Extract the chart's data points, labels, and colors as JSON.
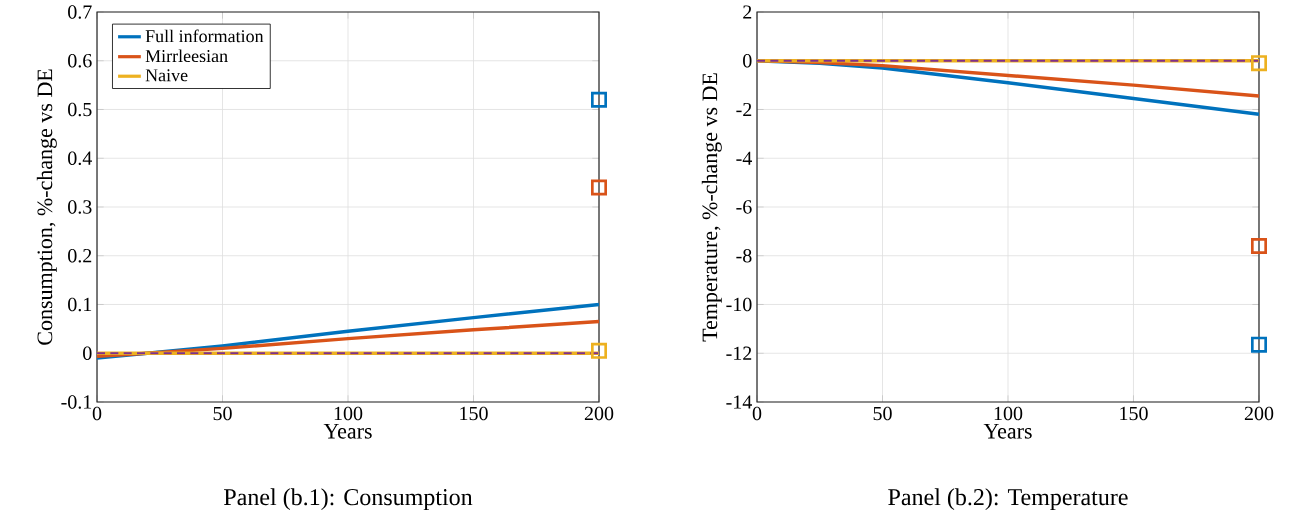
{
  "chart_data": [
    {
      "type": "line",
      "title": "Panel (b.1): Consumption",
      "xlabel": "Years",
      "ylabel": "Consumption, %-change vs DE",
      "xlim": [
        0,
        200
      ],
      "xticks": [
        0,
        50,
        100,
        150,
        200
      ],
      "ylim": [
        -0.1,
        0.7
      ],
      "yticks": [
        -0.1,
        0,
        0.1,
        0.2,
        0.3,
        0.4,
        0.5,
        0.6,
        0.7
      ],
      "grid": true,
      "legend": "top left",
      "marker": "none",
      "line_style": "solid",
      "ref_lines": [
        {
          "axis": "y",
          "value": 0,
          "color": "#7e2f8e",
          "line_style": "dashed"
        }
      ],
      "series": [
        {
          "name": "Full information",
          "color": "#0072bd",
          "x": [
            0,
            20,
            50,
            100,
            150,
            200
          ],
          "values": [
            -0.01,
            0,
            0.015,
            0.045,
            0.073,
            0.1
          ]
        },
        {
          "name": "Mirrleesian",
          "color": "#d95319",
          "x": [
            0,
            20,
            50,
            100,
            150,
            200
          ],
          "values": [
            -0.006,
            0,
            0.01,
            0.03,
            0.048,
            0.065
          ]
        },
        {
          "name": "Naive",
          "color": "#edb120",
          "x": [
            0,
            200
          ],
          "values": [
            0,
            0
          ]
        },
        {
          "type": "scatter",
          "marker": "square",
          "color": "#0072bd",
          "x": [
            200
          ],
          "values": [
            0.52
          ]
        },
        {
          "type": "scatter",
          "marker": "square",
          "color": "#d95319",
          "x": [
            200
          ],
          "values": [
            0.34
          ]
        },
        {
          "type": "scatter",
          "marker": "square",
          "color": "#edb120",
          "x": [
            200
          ],
          "values": [
            0.005
          ]
        }
      ]
    },
    {
      "type": "line",
      "title": "Panel (b.2): Temperature",
      "xlabel": "Years",
      "ylabel": "Temperature, %-change vs DE",
      "xlim": [
        0,
        200
      ],
      "xticks": [
        0,
        50,
        100,
        150,
        200
      ],
      "ylim": [
        -14,
        2
      ],
      "yticks": [
        -14,
        -12,
        -10,
        -8,
        -6,
        -4,
        -2,
        0,
        2
      ],
      "grid": true,
      "marker": "none",
      "line_style": "solid",
      "ref_lines": [
        {
          "axis": "y",
          "value": 0,
          "color": "#7e2f8e",
          "line_style": "dashed"
        }
      ],
      "series": [
        {
          "color": "#0072bd",
          "x": [
            0,
            25,
            50,
            100,
            150,
            200
          ],
          "values": [
            0,
            -0.1,
            -0.3,
            -0.9,
            -1.55,
            -2.2
          ]
        },
        {
          "color": "#d95319",
          "x": [
            0,
            25,
            50,
            100,
            150,
            200
          ],
          "values": [
            0,
            -0.07,
            -0.2,
            -0.6,
            -1.0,
            -1.45
          ]
        },
        {
          "color": "#edb120",
          "x": [
            0,
            200
          ],
          "values": [
            0,
            0
          ]
        },
        {
          "type": "scatter",
          "marker": "square",
          "color": "#0072bd",
          "x": [
            200
          ],
          "values": [
            -11.65
          ]
        },
        {
          "type": "scatter",
          "marker": "square",
          "color": "#d95319",
          "x": [
            200
          ],
          "values": [
            -7.6
          ]
        },
        {
          "type": "scatter",
          "marker": "square",
          "color": "#edb120",
          "x": [
            200
          ],
          "values": [
            -0.1
          ]
        }
      ]
    }
  ]
}
